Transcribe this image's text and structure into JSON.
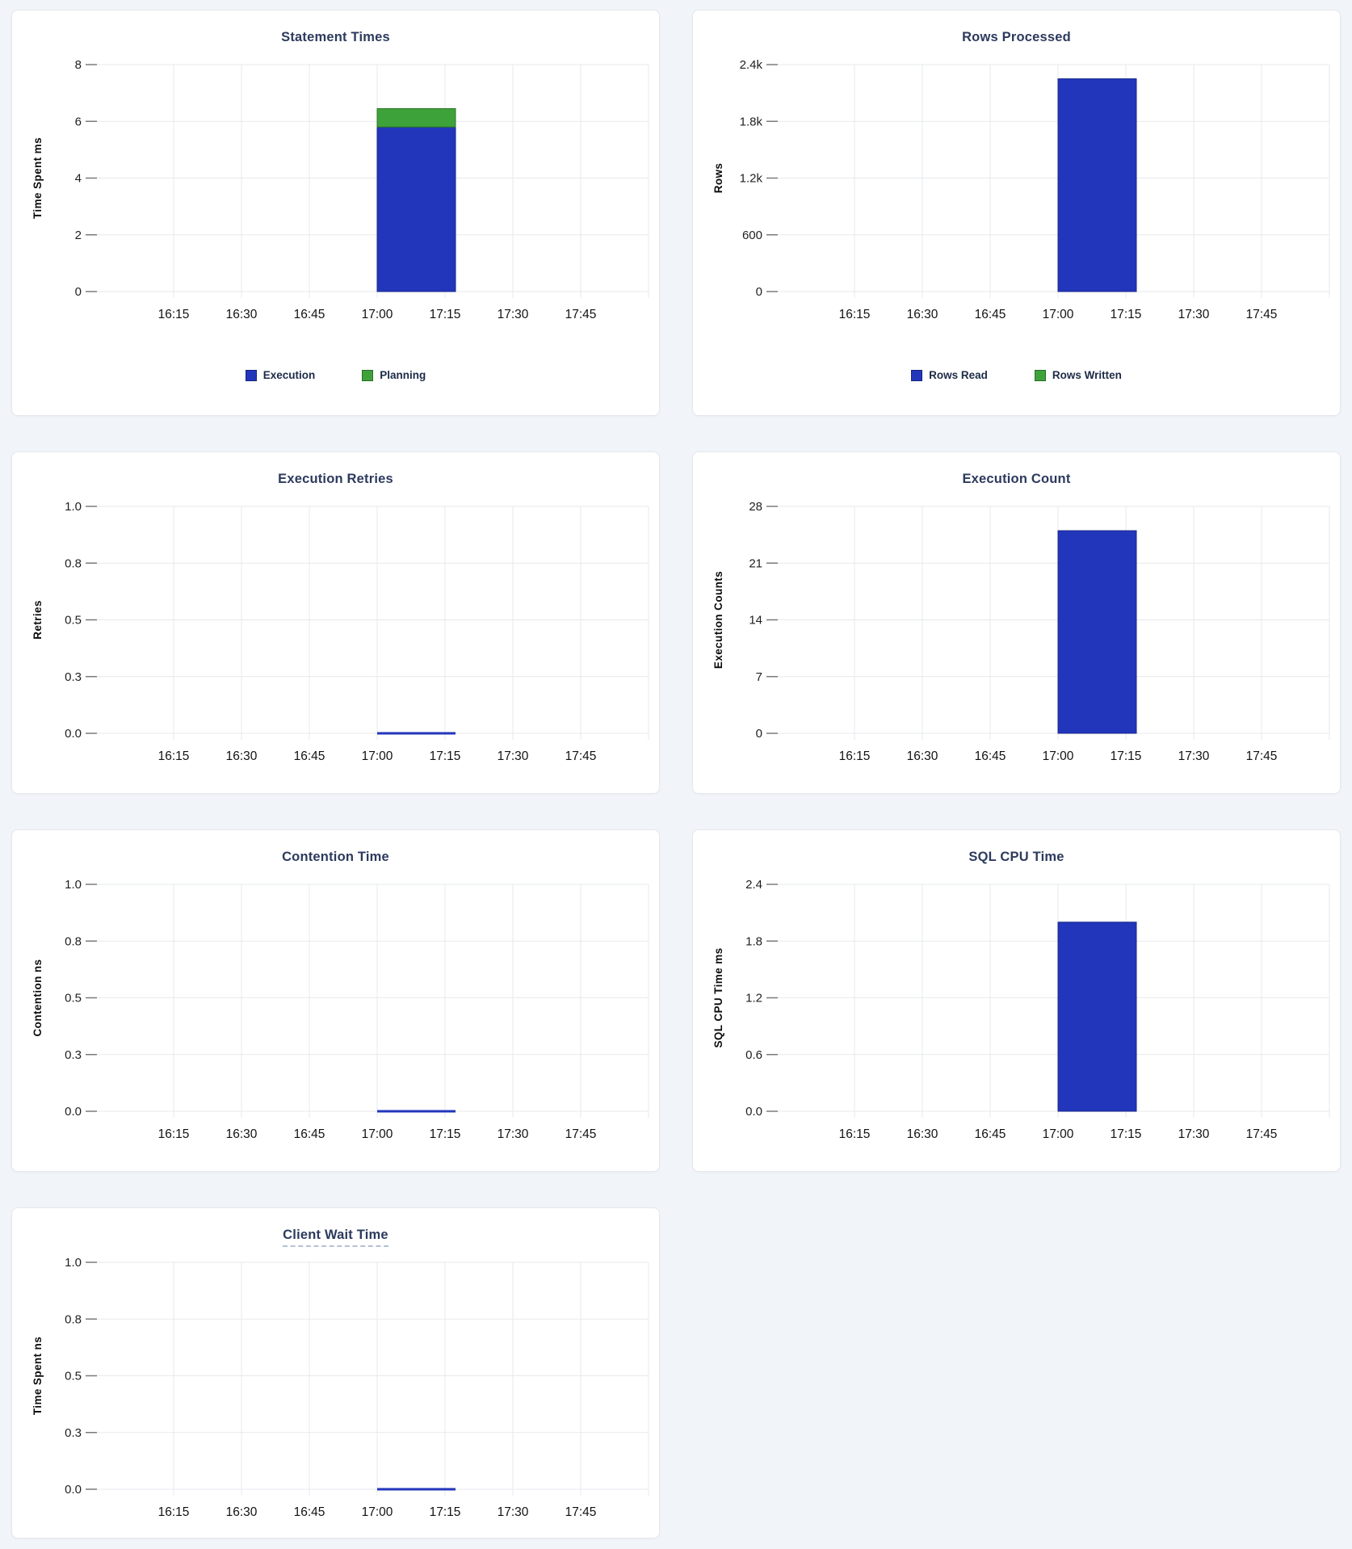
{
  "page": {
    "background": "#f1f4f8"
  },
  "palette": {
    "execution_blue": "#2236BB",
    "planning_green": "#3EA23B"
  },
  "chart_data": [
    {
      "type": "bar",
      "stacked": true,
      "title": "Statement Times",
      "title_underlined": false,
      "xlabel": "",
      "ylabel": "Time Spent ms",
      "ylim": [
        0,
        8
      ],
      "grid": true,
      "y_ticks": [
        "8",
        "6",
        "4",
        "2",
        "0"
      ],
      "x_ticks": [
        "16:15",
        "16:30",
        "16:45",
        "17:00",
        "17:15",
        "17:30",
        "17:45"
      ],
      "show_legend": true,
      "legend_position": "bottom",
      "legend": [
        "Execution",
        "Planning"
      ],
      "series": [
        {
          "name": "Execution",
          "color": "#2236BB",
          "data": [
            {
              "x_start": "17:00",
              "x_end": "17:15",
              "y": 5.8
            }
          ]
        },
        {
          "name": "Planning",
          "color": "#3EA23B",
          "data": [
            {
              "x_start": "17:00",
              "x_end": "17:15",
              "y": 0.65
            }
          ]
        }
      ]
    },
    {
      "type": "bar",
      "stacked": true,
      "title": "Rows Processed",
      "title_underlined": false,
      "xlabel": "",
      "ylabel": "Rows",
      "ylim": [
        0,
        2400
      ],
      "grid": true,
      "y_ticks": [
        "2.4k",
        "1.8k",
        "1.2k",
        "600",
        "0"
      ],
      "x_ticks": [
        "16:15",
        "16:30",
        "16:45",
        "17:00",
        "17:15",
        "17:30",
        "17:45"
      ],
      "show_legend": true,
      "legend_position": "bottom",
      "legend": [
        "Rows Read",
        "Rows Written"
      ],
      "series": [
        {
          "name": "Rows Read",
          "color": "#2236BB",
          "data": [
            {
              "x_start": "17:00",
              "x_end": "17:15",
              "y": 2250
            }
          ]
        },
        {
          "name": "Rows Written",
          "color": "#3EA23B",
          "data": [
            {
              "x_start": "17:00",
              "x_end": "17:15",
              "y": 0
            }
          ]
        }
      ]
    },
    {
      "type": "bar",
      "stacked": false,
      "title": "Execution Retries",
      "title_underlined": false,
      "xlabel": "",
      "ylabel": "Retries",
      "ylim": [
        0,
        1
      ],
      "grid": true,
      "y_ticks": [
        "1.0",
        "0.8",
        "0.5",
        "0.3",
        "0.0"
      ],
      "x_ticks": [
        "16:15",
        "16:30",
        "16:45",
        "17:00",
        "17:15",
        "17:30",
        "17:45"
      ],
      "show_legend": false,
      "legend": [],
      "series": [
        {
          "name": "Retries",
          "color": "#2236BB",
          "data": [
            {
              "x_start": "17:00",
              "x_end": "17:15",
              "y": 0
            }
          ]
        }
      ]
    },
    {
      "type": "bar",
      "stacked": false,
      "title": "Execution Count",
      "title_underlined": false,
      "xlabel": "",
      "ylabel": "Execution Counts",
      "ylim": [
        0,
        28
      ],
      "grid": true,
      "y_ticks": [
        "28",
        "21",
        "14",
        "7",
        "0"
      ],
      "x_ticks": [
        "16:15",
        "16:30",
        "16:45",
        "17:00",
        "17:15",
        "17:30",
        "17:45"
      ],
      "show_legend": false,
      "legend": [],
      "series": [
        {
          "name": "Execution Count",
          "color": "#2236BB",
          "data": [
            {
              "x_start": "17:00",
              "x_end": "17:15",
              "y": 25
            }
          ]
        }
      ]
    },
    {
      "type": "bar",
      "stacked": false,
      "title": "Contention Time",
      "title_underlined": false,
      "xlabel": "",
      "ylabel": "Contention ns",
      "ylim": [
        0,
        1
      ],
      "grid": true,
      "y_ticks": [
        "1.0",
        "0.8",
        "0.5",
        "0.3",
        "0.0"
      ],
      "x_ticks": [
        "16:15",
        "16:30",
        "16:45",
        "17:00",
        "17:15",
        "17:30",
        "17:45"
      ],
      "show_legend": false,
      "legend": [],
      "series": [
        {
          "name": "Contention",
          "color": "#2236BB",
          "data": [
            {
              "x_start": "17:00",
              "x_end": "17:15",
              "y": 0
            }
          ]
        }
      ]
    },
    {
      "type": "bar",
      "stacked": false,
      "title": "SQL CPU Time",
      "title_underlined": false,
      "xlabel": "",
      "ylabel": "SQL CPU Time ms",
      "ylim": [
        0,
        2.4
      ],
      "grid": true,
      "y_ticks": [
        "2.4",
        "1.8",
        "1.2",
        "0.6",
        "0.0"
      ],
      "x_ticks": [
        "16:15",
        "16:30",
        "16:45",
        "17:00",
        "17:15",
        "17:30",
        "17:45"
      ],
      "show_legend": false,
      "legend": [],
      "series": [
        {
          "name": "SQL CPU Time",
          "color": "#2236BB",
          "data": [
            {
              "x_start": "17:00",
              "x_end": "17:15",
              "y": 2.0
            }
          ]
        }
      ]
    },
    {
      "type": "bar",
      "stacked": false,
      "title": "Client Wait Time",
      "title_underlined": true,
      "xlabel": "",
      "ylabel": "Time Spent ns",
      "ylim": [
        0,
        1
      ],
      "grid": true,
      "y_ticks": [
        "1.0",
        "0.8",
        "0.5",
        "0.3",
        "0.0"
      ],
      "x_ticks": [
        "16:15",
        "16:30",
        "16:45",
        "17:00",
        "17:15",
        "17:30",
        "17:45"
      ],
      "show_legend": false,
      "legend": [],
      "series": [
        {
          "name": "Client Wait",
          "color": "#2236BB",
          "data": [
            {
              "x_start": "17:00",
              "x_end": "17:15",
              "y": 0
            }
          ]
        }
      ]
    }
  ]
}
